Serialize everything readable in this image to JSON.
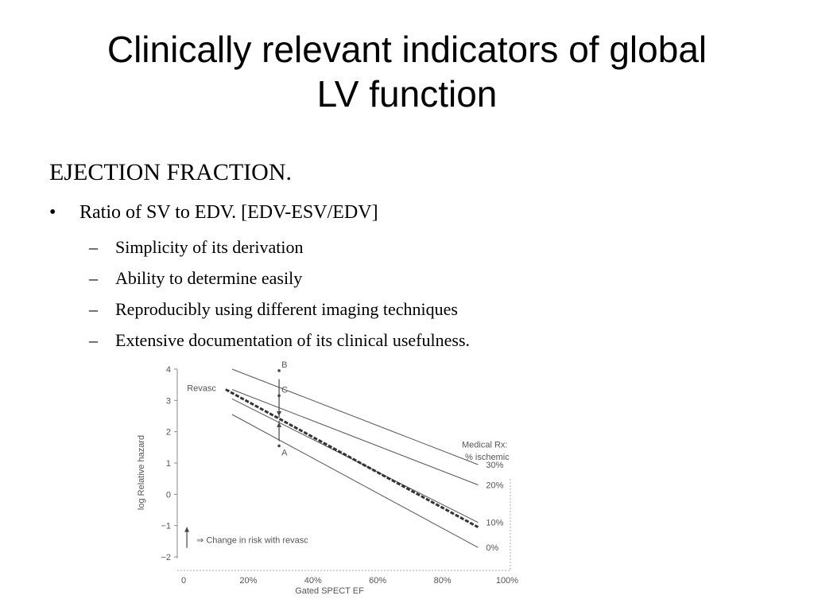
{
  "slide": {
    "title_line1": "Clinically relevant indicators of global",
    "title_line2": "LV function",
    "section_heading": "EJECTION FRACTION.",
    "bullet": {
      "marker": "•",
      "text": "Ratio of SV to EDV. [EDV-ESV/EDV]"
    },
    "sub_bullets": [
      {
        "marker": "–",
        "text": "Simplicity of its derivation"
      },
      {
        "marker": "–",
        "text": "Ability to determine easily"
      },
      {
        "marker": "–",
        "text": "Reproducibly using different imaging techniques"
      },
      {
        "marker": "–",
        "text": "Extensive documentation of its clinical usefulness."
      }
    ]
  },
  "chart_data": {
    "type": "line",
    "xlabel": "Gated SPECT EF",
    "ylabel": "log Relative hazard",
    "xlim": [
      0,
      100
    ],
    "ylim": [
      -2,
      4
    ],
    "x_ticks": [
      0,
      20,
      40,
      60,
      80,
      100
    ],
    "x_tick_labels": [
      "0",
      "20%",
      "40%",
      "60%",
      "80%",
      "100%"
    ],
    "y_ticks": [
      -2,
      -1,
      0,
      1,
      2,
      3,
      4
    ],
    "y_tick_labels": [
      "−2",
      "−1",
      "0",
      "1",
      "2",
      "3",
      "4"
    ],
    "grid": false,
    "series": [
      {
        "name": "30%",
        "style": "solid",
        "points": [
          [
            15,
            4.0
          ],
          [
            91,
            0.95
          ]
        ]
      },
      {
        "name": "20%",
        "style": "solid",
        "points": [
          [
            15,
            3.35
          ],
          [
            91,
            0.3
          ]
        ]
      },
      {
        "name": "10%",
        "style": "solid",
        "points": [
          [
            15,
            3.05
          ],
          [
            91,
            -0.9
          ]
        ]
      },
      {
        "name": "0%",
        "style": "solid",
        "points": [
          [
            15,
            2.55
          ],
          [
            91,
            -1.7
          ]
        ]
      },
      {
        "name": "Revasc",
        "style": "dashed",
        "points": [
          [
            13,
            3.35
          ],
          [
            91,
            -1.05
          ]
        ]
      }
    ],
    "legend": {
      "title_line1": "Medical Rx:",
      "title_line2": "% ischemic",
      "placement": "right"
    },
    "annotations": [
      {
        "label": "B",
        "x": 29.5,
        "y": 3.8
      },
      {
        "label": "C",
        "x": 29.5,
        "y": 3.0
      },
      {
        "label": "A",
        "x": 29.5,
        "y": 1.6
      },
      {
        "label": "Revasc",
        "x": 3,
        "y": 3.4
      }
    ],
    "arrow_legend": "⇒ Change in risk with revasc"
  }
}
